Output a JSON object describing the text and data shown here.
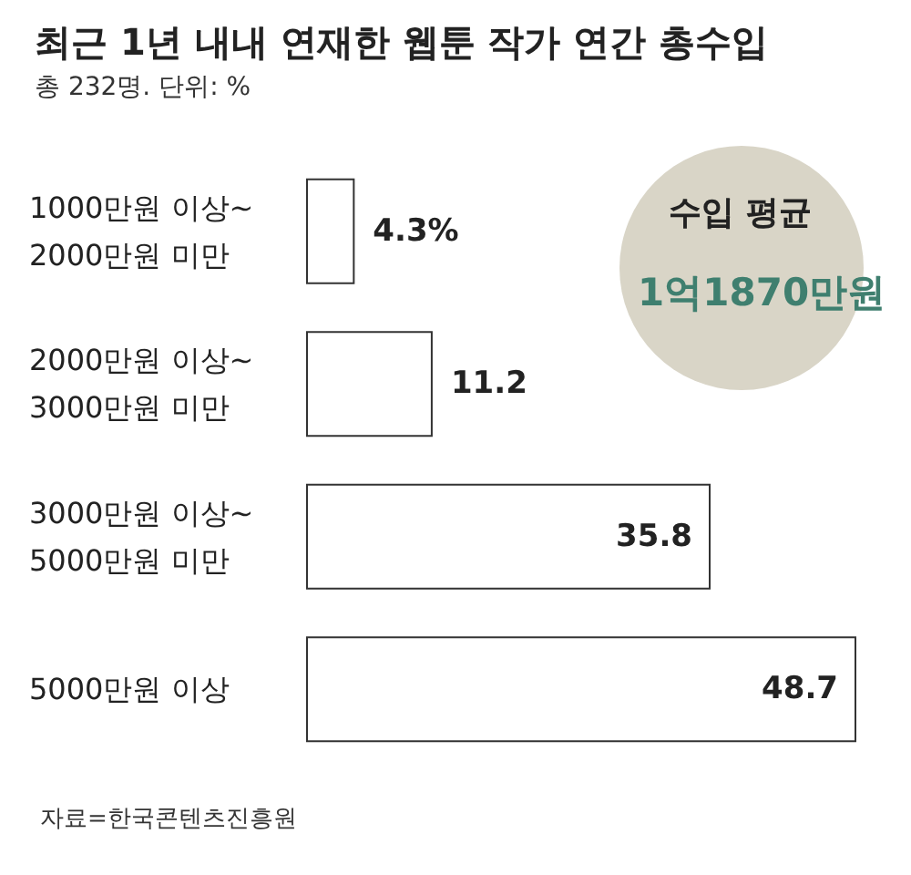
{
  "chart_data": {
    "type": "bar",
    "orientation": "horizontal",
    "title": "최근 1년 내내 연재한 웹툰 작가 연간 총수입",
    "subtitle": "총 232명. 단위: %",
    "categories": [
      "1000만원 이상~\n2000만원 미만",
      "2000만원 이상~\n3000만원 미만",
      "3000만원 이상~\n5000만원 미만",
      "5000만원 이상"
    ],
    "values": [
      4.3,
      11.2,
      35.8,
      48.7
    ],
    "value_labels": [
      "4.3%",
      "11.2",
      "35.8",
      "48.7"
    ],
    "color": "#ffffff",
    "tick_labels": "y",
    "annotations": [
      "수입 평균",
      "1억1870만원",
      "자료=한국콘텐츠진흥원"
    ]
  }
}
